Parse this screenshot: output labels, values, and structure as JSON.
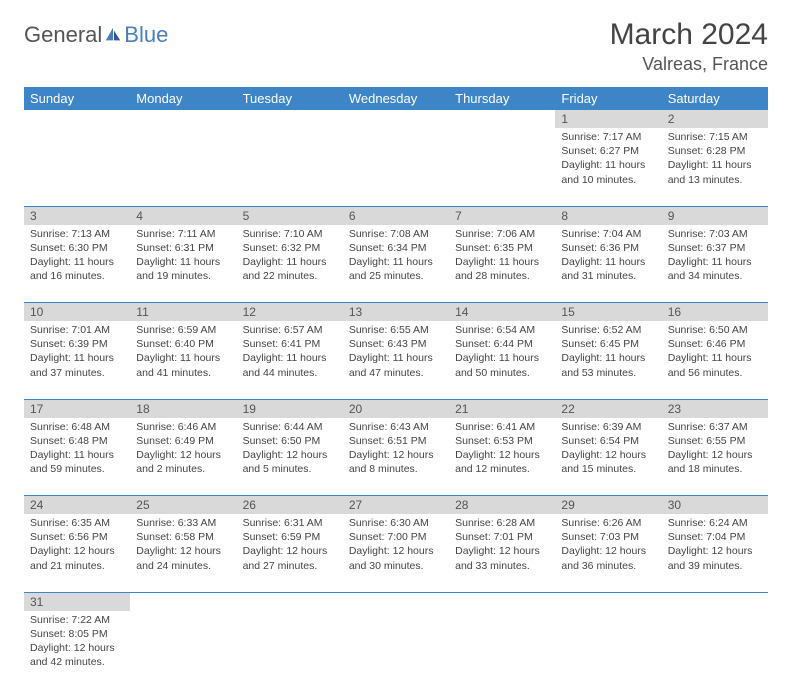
{
  "logo": {
    "part1": "General",
    "part2": "Blue"
  },
  "title": "March 2024",
  "location": "Valreas, France",
  "colors": {
    "header_bg": "#3d85c6",
    "header_text": "#ffffff",
    "daynum_bg": "#d9d9d9",
    "border": "#3d85c6",
    "text": "#444444",
    "logo_gray": "#555555",
    "logo_blue": "#4a7fb5"
  },
  "weekdays": [
    "Sunday",
    "Monday",
    "Tuesday",
    "Wednesday",
    "Thursday",
    "Friday",
    "Saturday"
  ],
  "weeks": [
    [
      null,
      null,
      null,
      null,
      null,
      {
        "n": "1",
        "sr": "7:17 AM",
        "ss": "6:27 PM",
        "dl": "11 hours and 10 minutes."
      },
      {
        "n": "2",
        "sr": "7:15 AM",
        "ss": "6:28 PM",
        "dl": "11 hours and 13 minutes."
      }
    ],
    [
      {
        "n": "3",
        "sr": "7:13 AM",
        "ss": "6:30 PM",
        "dl": "11 hours and 16 minutes."
      },
      {
        "n": "4",
        "sr": "7:11 AM",
        "ss": "6:31 PM",
        "dl": "11 hours and 19 minutes."
      },
      {
        "n": "5",
        "sr": "7:10 AM",
        "ss": "6:32 PM",
        "dl": "11 hours and 22 minutes."
      },
      {
        "n": "6",
        "sr": "7:08 AM",
        "ss": "6:34 PM",
        "dl": "11 hours and 25 minutes."
      },
      {
        "n": "7",
        "sr": "7:06 AM",
        "ss": "6:35 PM",
        "dl": "11 hours and 28 minutes."
      },
      {
        "n": "8",
        "sr": "7:04 AM",
        "ss": "6:36 PM",
        "dl": "11 hours and 31 minutes."
      },
      {
        "n": "9",
        "sr": "7:03 AM",
        "ss": "6:37 PM",
        "dl": "11 hours and 34 minutes."
      }
    ],
    [
      {
        "n": "10",
        "sr": "7:01 AM",
        "ss": "6:39 PM",
        "dl": "11 hours and 37 minutes."
      },
      {
        "n": "11",
        "sr": "6:59 AM",
        "ss": "6:40 PM",
        "dl": "11 hours and 41 minutes."
      },
      {
        "n": "12",
        "sr": "6:57 AM",
        "ss": "6:41 PM",
        "dl": "11 hours and 44 minutes."
      },
      {
        "n": "13",
        "sr": "6:55 AM",
        "ss": "6:43 PM",
        "dl": "11 hours and 47 minutes."
      },
      {
        "n": "14",
        "sr": "6:54 AM",
        "ss": "6:44 PM",
        "dl": "11 hours and 50 minutes."
      },
      {
        "n": "15",
        "sr": "6:52 AM",
        "ss": "6:45 PM",
        "dl": "11 hours and 53 minutes."
      },
      {
        "n": "16",
        "sr": "6:50 AM",
        "ss": "6:46 PM",
        "dl": "11 hours and 56 minutes."
      }
    ],
    [
      {
        "n": "17",
        "sr": "6:48 AM",
        "ss": "6:48 PM",
        "dl": "11 hours and 59 minutes."
      },
      {
        "n": "18",
        "sr": "6:46 AM",
        "ss": "6:49 PM",
        "dl": "12 hours and 2 minutes."
      },
      {
        "n": "19",
        "sr": "6:44 AM",
        "ss": "6:50 PM",
        "dl": "12 hours and 5 minutes."
      },
      {
        "n": "20",
        "sr": "6:43 AM",
        "ss": "6:51 PM",
        "dl": "12 hours and 8 minutes."
      },
      {
        "n": "21",
        "sr": "6:41 AM",
        "ss": "6:53 PM",
        "dl": "12 hours and 12 minutes."
      },
      {
        "n": "22",
        "sr": "6:39 AM",
        "ss": "6:54 PM",
        "dl": "12 hours and 15 minutes."
      },
      {
        "n": "23",
        "sr": "6:37 AM",
        "ss": "6:55 PM",
        "dl": "12 hours and 18 minutes."
      }
    ],
    [
      {
        "n": "24",
        "sr": "6:35 AM",
        "ss": "6:56 PM",
        "dl": "12 hours and 21 minutes."
      },
      {
        "n": "25",
        "sr": "6:33 AM",
        "ss": "6:58 PM",
        "dl": "12 hours and 24 minutes."
      },
      {
        "n": "26",
        "sr": "6:31 AM",
        "ss": "6:59 PM",
        "dl": "12 hours and 27 minutes."
      },
      {
        "n": "27",
        "sr": "6:30 AM",
        "ss": "7:00 PM",
        "dl": "12 hours and 30 minutes."
      },
      {
        "n": "28",
        "sr": "6:28 AM",
        "ss": "7:01 PM",
        "dl": "12 hours and 33 minutes."
      },
      {
        "n": "29",
        "sr": "6:26 AM",
        "ss": "7:03 PM",
        "dl": "12 hours and 36 minutes."
      },
      {
        "n": "30",
        "sr": "6:24 AM",
        "ss": "7:04 PM",
        "dl": "12 hours and 39 minutes."
      }
    ],
    [
      {
        "n": "31",
        "sr": "7:22 AM",
        "ss": "8:05 PM",
        "dl": "12 hours and 42 minutes."
      },
      null,
      null,
      null,
      null,
      null,
      null
    ]
  ],
  "labels": {
    "sunrise": "Sunrise:",
    "sunset": "Sunset:",
    "daylight": "Daylight:"
  }
}
